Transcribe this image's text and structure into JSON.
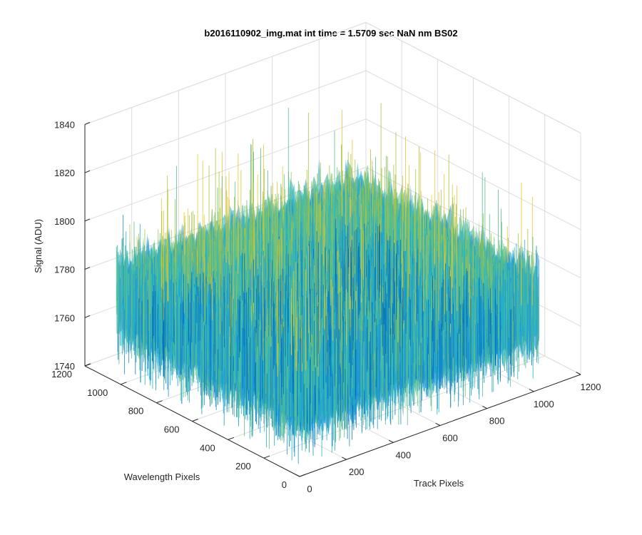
{
  "chart_data": {
    "type": "surface",
    "title": "b2016110902_img.mat int time = 1.5709 sec  NaN nm BS02",
    "xlabel": "Track Pixels",
    "ylabel": "Wavelength Pixels",
    "zlabel": "Signal (ADU)",
    "xlim": [
      0,
      1200
    ],
    "ylim": [
      0,
      1200
    ],
    "zlim": [
      1740,
      1840
    ],
    "x_ticks": [
      "0",
      "200",
      "400",
      "600",
      "800",
      "1000",
      "1200"
    ],
    "y_ticks": [
      "0",
      "200",
      "400",
      "600",
      "800",
      "1000",
      "1200"
    ],
    "z_ticks": [
      "1740",
      "1760",
      "1780",
      "1800",
      "1820",
      "1840"
    ],
    "x_data_range": [
      0,
      1024
    ],
    "y_data_range": [
      0,
      1024
    ],
    "signal_mean": 1775,
    "signal_range": [
      1745,
      1830
    ],
    "colormap": "parula",
    "colors": [
      "#0072bd",
      "#1f96d4",
      "#27b3c7",
      "#5cc08c",
      "#a8c342",
      "#e6c832"
    ],
    "grid": true
  }
}
